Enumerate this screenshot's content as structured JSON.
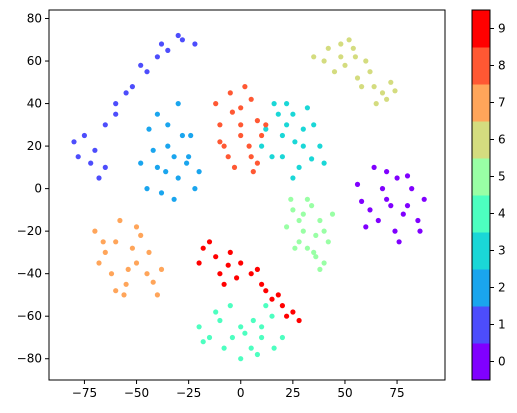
{
  "chart_data": {
    "type": "scatter",
    "title": "",
    "xlabel": "",
    "ylabel": "",
    "xlim": [
      -92,
      98
    ],
    "ylim": [
      -90,
      84
    ],
    "xticks": [
      -75,
      -50,
      -25,
      0,
      25,
      50,
      75
    ],
    "yticks": [
      -80,
      -60,
      -40,
      -20,
      0,
      20,
      40,
      60,
      80
    ],
    "grid": false,
    "colorbar": {
      "ticks": [
        "0",
        "1",
        "2",
        "3",
        "4",
        "5",
        "6",
        "7",
        "8",
        "9"
      ],
      "colors": [
        "#8000ff",
        "#4d4dfc",
        "#1aa5ee",
        "#1ad7d7",
        "#4dffc0",
        "#99ffa5",
        "#d4dc7f",
        "#ffa55a",
        "#ff5833",
        "#ff0000"
      ]
    },
    "clusters": [
      {
        "label": "0",
        "points": [
          [
            70,
            -5
          ],
          [
            80,
            -8
          ],
          [
            62,
            -10
          ],
          [
            75,
            5
          ],
          [
            85,
            -15
          ],
          [
            68,
            0
          ],
          [
            74,
            -20
          ],
          [
            82,
            0
          ],
          [
            60,
            -18
          ],
          [
            78,
            -12
          ],
          [
            88,
            -5
          ],
          [
            66,
            -15
          ],
          [
            72,
            -8
          ],
          [
            56,
            2
          ],
          [
            64,
            10
          ],
          [
            70,
            8
          ],
          [
            86,
            -20
          ],
          [
            76,
            -25
          ],
          [
            58,
            -6
          ],
          [
            80,
            6
          ]
        ]
      },
      {
        "label": "1",
        "points": [
          [
            -70,
            18
          ],
          [
            -75,
            25
          ],
          [
            -65,
            10
          ],
          [
            -60,
            40
          ],
          [
            -52,
            48
          ],
          [
            -45,
            55
          ],
          [
            -35,
            65
          ],
          [
            -30,
            72
          ],
          [
            -22,
            68
          ],
          [
            -80,
            22
          ],
          [
            -72,
            12
          ],
          [
            -55,
            45
          ],
          [
            -40,
            62
          ],
          [
            -28,
            70
          ],
          [
            -65,
            30
          ],
          [
            -78,
            15
          ],
          [
            -48,
            58
          ],
          [
            -60,
            35
          ],
          [
            -38,
            68
          ],
          [
            -68,
            5
          ]
        ]
      },
      {
        "label": "2",
        "points": [
          [
            -40,
            10
          ],
          [
            -30,
            5
          ],
          [
            -35,
            20
          ],
          [
            -25,
            15
          ],
          [
            -45,
            0
          ],
          [
            -20,
            8
          ],
          [
            -38,
            -2
          ],
          [
            -28,
            25
          ],
          [
            -42,
            18
          ],
          [
            -32,
            -5
          ],
          [
            -22,
            0
          ],
          [
            -35,
            30
          ],
          [
            -48,
            12
          ],
          [
            -26,
            12
          ],
          [
            -40,
            35
          ],
          [
            -30,
            40
          ],
          [
            -36,
            8
          ],
          [
            -24,
            25
          ],
          [
            -44,
            28
          ],
          [
            -32,
            15
          ]
        ]
      },
      {
        "label": "3",
        "points": [
          [
            20,
            25
          ],
          [
            30,
            20
          ],
          [
            25,
            35
          ],
          [
            15,
            15
          ],
          [
            35,
            30
          ],
          [
            28,
            10
          ],
          [
            22,
            40
          ],
          [
            12,
            28
          ],
          [
            38,
            20
          ],
          [
            25,
            5
          ],
          [
            18,
            35
          ],
          [
            32,
            38
          ],
          [
            30,
            28
          ],
          [
            20,
            15
          ],
          [
            40,
            12
          ],
          [
            10,
            20
          ],
          [
            26,
            22
          ],
          [
            34,
            14
          ],
          [
            16,
            40
          ],
          [
            22,
            30
          ]
        ]
      },
      {
        "label": "4",
        "points": [
          [
            0,
            -65
          ],
          [
            10,
            -70
          ],
          [
            -10,
            -62
          ],
          [
            5,
            -75
          ],
          [
            -15,
            -70
          ],
          [
            15,
            -60
          ],
          [
            -5,
            -55
          ],
          [
            8,
            -78
          ],
          [
            -20,
            -65
          ],
          [
            20,
            -70
          ],
          [
            2,
            -68
          ],
          [
            -8,
            -75
          ],
          [
            12,
            -55
          ],
          [
            -12,
            -58
          ],
          [
            6,
            -62
          ],
          [
            -18,
            -72
          ],
          [
            16,
            -75
          ],
          [
            0,
            -80
          ],
          [
            10,
            -65
          ],
          [
            -4,
            -70
          ]
        ]
      },
      {
        "label": "5",
        "points": [
          [
            30,
            -20
          ],
          [
            38,
            -15
          ],
          [
            25,
            -10
          ],
          [
            35,
            -30
          ],
          [
            42,
            -25
          ],
          [
            28,
            -25
          ],
          [
            32,
            -5
          ],
          [
            40,
            -35
          ],
          [
            22,
            -18
          ],
          [
            36,
            -22
          ],
          [
            30,
            -12
          ],
          [
            26,
            -28
          ],
          [
            44,
            -12
          ],
          [
            34,
            -8
          ],
          [
            38,
            -38
          ],
          [
            28,
            -15
          ],
          [
            40,
            -20
          ],
          [
            32,
            -28
          ],
          [
            24,
            -5
          ],
          [
            36,
            -32
          ]
        ]
      },
      {
        "label": "6",
        "points": [
          [
            40,
            60
          ],
          [
            48,
            68
          ],
          [
            55,
            62
          ],
          [
            62,
            55
          ],
          [
            68,
            45
          ],
          [
            72,
            50
          ],
          [
            45,
            55
          ],
          [
            52,
            70
          ],
          [
            58,
            48
          ],
          [
            65,
            40
          ],
          [
            35,
            62
          ],
          [
            60,
            60
          ],
          [
            50,
            58
          ],
          [
            70,
            42
          ],
          [
            42,
            66
          ],
          [
            56,
            52
          ],
          [
            64,
            48
          ],
          [
            48,
            62
          ],
          [
            74,
            46
          ],
          [
            54,
            66
          ]
        ]
      },
      {
        "label": "7",
        "points": [
          [
            -60,
            -25
          ],
          [
            -50,
            -35
          ],
          [
            -65,
            -30
          ],
          [
            -55,
            -45
          ],
          [
            -45,
            -40
          ],
          [
            -70,
            -20
          ],
          [
            -58,
            -15
          ],
          [
            -40,
            -50
          ],
          [
            -52,
            -28
          ],
          [
            -62,
            -40
          ],
          [
            -48,
            -22
          ],
          [
            -68,
            -35
          ],
          [
            -44,
            -30
          ],
          [
            -56,
            -50
          ],
          [
            -38,
            -38
          ],
          [
            -66,
            -25
          ],
          [
            -50,
            -18
          ],
          [
            -60,
            -48
          ],
          [
            -42,
            -44
          ],
          [
            -54,
            -38
          ]
        ]
      },
      {
        "label": "8",
        "points": [
          [
            -5,
            45
          ],
          [
            0,
            38
          ],
          [
            5,
            42
          ],
          [
            -10,
            30
          ],
          [
            0,
            25
          ],
          [
            5,
            15
          ],
          [
            -8,
            20
          ],
          [
            10,
            25
          ],
          [
            -3,
            10
          ],
          [
            8,
            32
          ],
          [
            -12,
            40
          ],
          [
            2,
            48
          ],
          [
            -6,
            15
          ],
          [
            4,
            20
          ],
          [
            12,
            30
          ],
          [
            -10,
            22
          ],
          [
            6,
            8
          ],
          [
            0,
            30
          ],
          [
            -4,
            36
          ],
          [
            8,
            12
          ]
        ]
      },
      {
        "label": "9",
        "points": [
          [
            -15,
            -25
          ],
          [
            -5,
            -30
          ],
          [
            -20,
            -35
          ],
          [
            0,
            -35
          ],
          [
            -10,
            -40
          ],
          [
            5,
            -40
          ],
          [
            -18,
            -28
          ],
          [
            -8,
            -45
          ],
          [
            10,
            -45
          ],
          [
            15,
            -52
          ],
          [
            20,
            -55
          ],
          [
            25,
            -58
          ],
          [
            28,
            -62
          ],
          [
            -12,
            -32
          ],
          [
            -2,
            -42
          ],
          [
            18,
            -50
          ],
          [
            12,
            -48
          ],
          [
            22,
            -60
          ],
          [
            -6,
            -36
          ],
          [
            8,
            -38
          ]
        ]
      }
    ]
  }
}
